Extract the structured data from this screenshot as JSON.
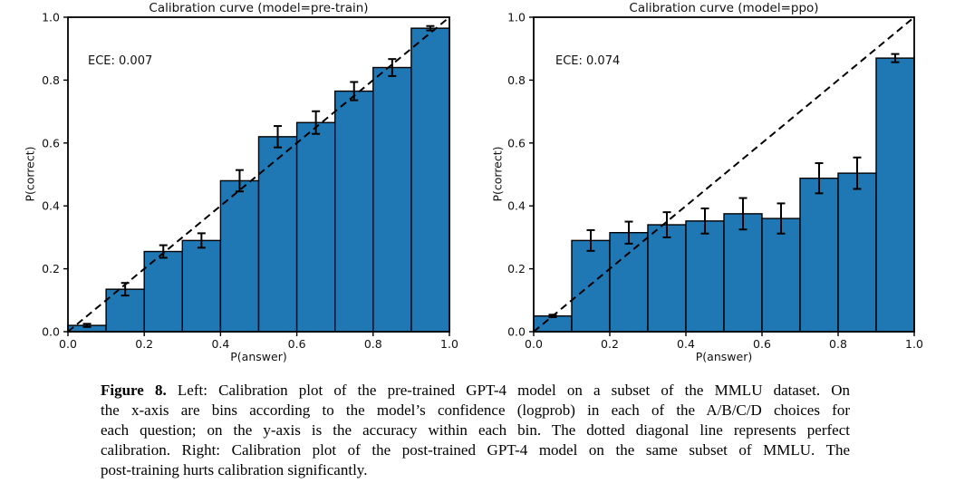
{
  "chart_data": [
    {
      "type": "bar",
      "title": "Calibration curve (model=pre-train)",
      "annotation": "ECE: 0.007",
      "xlabel": "P(answer)",
      "ylabel": "P(correct)",
      "xlim": [
        0.0,
        1.0
      ],
      "ylim": [
        0.0,
        1.0
      ],
      "xticks": [
        "0.0",
        "0.2",
        "0.4",
        "0.6",
        "0.8",
        "1.0"
      ],
      "yticks": [
        "0.0",
        "0.2",
        "0.4",
        "0.6",
        "0.8",
        "1.0"
      ],
      "grid": false,
      "legend": null,
      "bin_width": 0.1,
      "bin_left_edges": [
        0.0,
        0.1,
        0.2,
        0.3,
        0.4,
        0.5,
        0.6,
        0.7,
        0.8,
        0.9
      ],
      "values": [
        0.02,
        0.135,
        0.255,
        0.29,
        0.48,
        0.62,
        0.665,
        0.765,
        0.84,
        0.965
      ],
      "error_bars": [
        0.005,
        0.02,
        0.02,
        0.023,
        0.034,
        0.034,
        0.036,
        0.029,
        0.027,
        0.007
      ],
      "reference_line": {
        "label": "perfect calibration",
        "style": "dashed",
        "from": [
          0,
          0
        ],
        "to": [
          1,
          1
        ]
      },
      "colors": {
        "bar_fill": "#1f77b4",
        "bar_edge": "#000000",
        "error": "#000000",
        "reference": "#000000",
        "spine": "#000000"
      }
    },
    {
      "type": "bar",
      "title": "Calibration curve (model=ppo)",
      "annotation": "ECE: 0.074",
      "xlabel": "P(answer)",
      "ylabel": "P(correct)",
      "xlim": [
        0.0,
        1.0
      ],
      "ylim": [
        0.0,
        1.0
      ],
      "xticks": [
        "0.0",
        "0.2",
        "0.4",
        "0.6",
        "0.8",
        "1.0"
      ],
      "yticks": [
        "0.0",
        "0.2",
        "0.4",
        "0.6",
        "0.8",
        "1.0"
      ],
      "grid": false,
      "legend": null,
      "bin_width": 0.1,
      "bin_left_edges": [
        0.0,
        0.1,
        0.2,
        0.3,
        0.4,
        0.5,
        0.6,
        0.7,
        0.8,
        0.9
      ],
      "values": [
        0.05,
        0.29,
        0.315,
        0.34,
        0.352,
        0.375,
        0.36,
        0.488,
        0.504,
        0.87
      ],
      "error_bars": [
        0.004,
        0.033,
        0.035,
        0.04,
        0.04,
        0.05,
        0.048,
        0.048,
        0.05,
        0.013
      ],
      "reference_line": {
        "label": "perfect calibration",
        "style": "dashed",
        "from": [
          0,
          0
        ],
        "to": [
          1,
          1
        ]
      },
      "colors": {
        "bar_fill": "#1f77b4",
        "bar_edge": "#000000",
        "error": "#000000",
        "reference": "#000000",
        "spine": "#000000"
      }
    }
  ],
  "caption": {
    "label": "Figure 8.",
    "lines": [
      " Left: Calibration plot of the pre-trained GPT-4 model on a subset of the MMLU dataset. On",
      "the x-axis are bins according to the model’s confidence (logprob) in each of the A/B/C/D choices for",
      "each question; on the y-axis is the accuracy within each bin. The dotted diagonal line represents perfect",
      "calibration. Right: Calibration plot of the post-trained GPT-4 model on the same subset of MMLU. The",
      "post-training hurts calibration significantly."
    ]
  }
}
